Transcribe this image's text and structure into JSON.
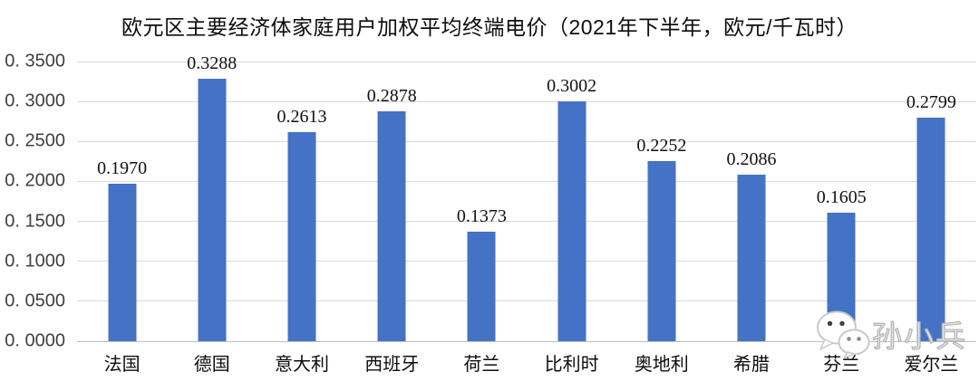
{
  "title": "欧元区主要经济体家庭用户加权平均终端电价（2021年下半年，欧元/千瓦时）",
  "chart_data": {
    "type": "bar",
    "title": "欧元区主要经济体家庭用户加权平均终端电价（2021年下半年，欧元/千瓦时）",
    "categories": [
      "法国",
      "德国",
      "意大利",
      "西班牙",
      "荷兰",
      "比利时",
      "奥地利",
      "希腊",
      "芬兰",
      "爱尔兰"
    ],
    "values": [
      0.197,
      0.3288,
      0.2613,
      0.2878,
      0.1373,
      0.3002,
      0.2252,
      0.2086,
      0.1605,
      0.2799
    ],
    "data_labels": [
      "0.1970",
      "0.3288",
      "0.2613",
      "0.2878",
      "0.1373",
      "0.3002",
      "0.2252",
      "0.2086",
      "0.1605",
      "0.2799"
    ],
    "xlabel": "",
    "ylabel": "",
    "ylim": [
      0,
      0.35
    ],
    "ytick_interval": 0.05,
    "ytick_labels": [
      "0. 0000",
      "0. 0500",
      "0. 1000",
      "0. 1500",
      "0. 2000",
      "0. 2500",
      "0. 3000",
      "0. 3500"
    ],
    "grid": true,
    "legend_position": "none",
    "bar_color": "#4472C4",
    "gridline_color": "#D9D9D9",
    "axisline_color": "#BFBFBF"
  },
  "watermark": {
    "icon": "wechat-icon",
    "text": "孙小兵"
  }
}
